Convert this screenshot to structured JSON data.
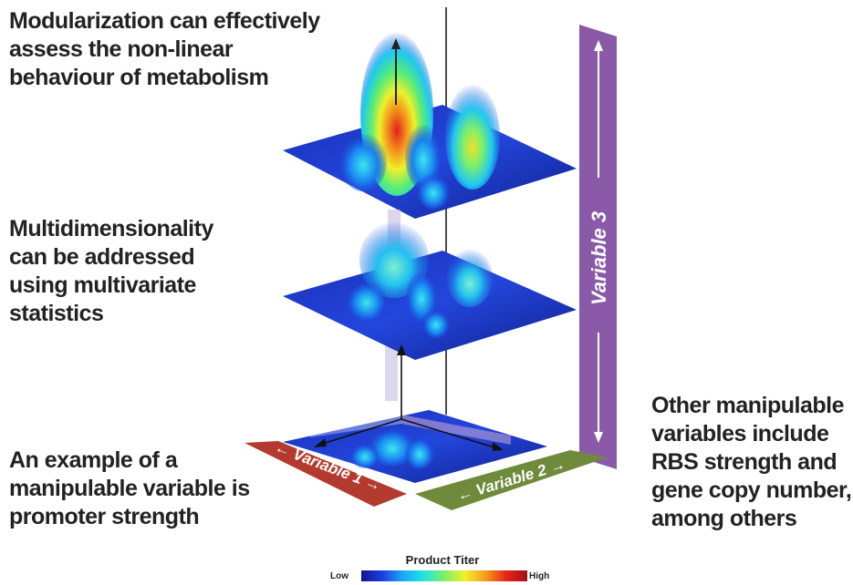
{
  "captions": {
    "top": [
      "Modularization can effectively",
      "assess the non-linear",
      "behaviour of metabolism"
    ],
    "middle": [
      "Multidimensionality",
      "can be addressed",
      "using multivariate",
      "statistics"
    ],
    "bottom": [
      "An example of a",
      "manipulable variable is",
      "promoter strength"
    ],
    "right": [
      "Other manipulable",
      "variables include",
      "RBS strength and",
      "gene copy number,",
      "among others"
    ]
  },
  "axes": {
    "variable1": "Variable 1",
    "variable2": "Variable 2",
    "variable3": "Variable 3"
  },
  "legend": {
    "title": "Product Titer",
    "low": "Low",
    "high": "High"
  },
  "colors": {
    "variable1_arrow": "#b33a2e",
    "variable2_arrow": "#6e8a3a",
    "variable3_arrow": "#8a5aa8",
    "plane_base": "#1e35c8",
    "colormap_low": "#0a1a8a",
    "colormap_high": "#a0101a"
  }
}
